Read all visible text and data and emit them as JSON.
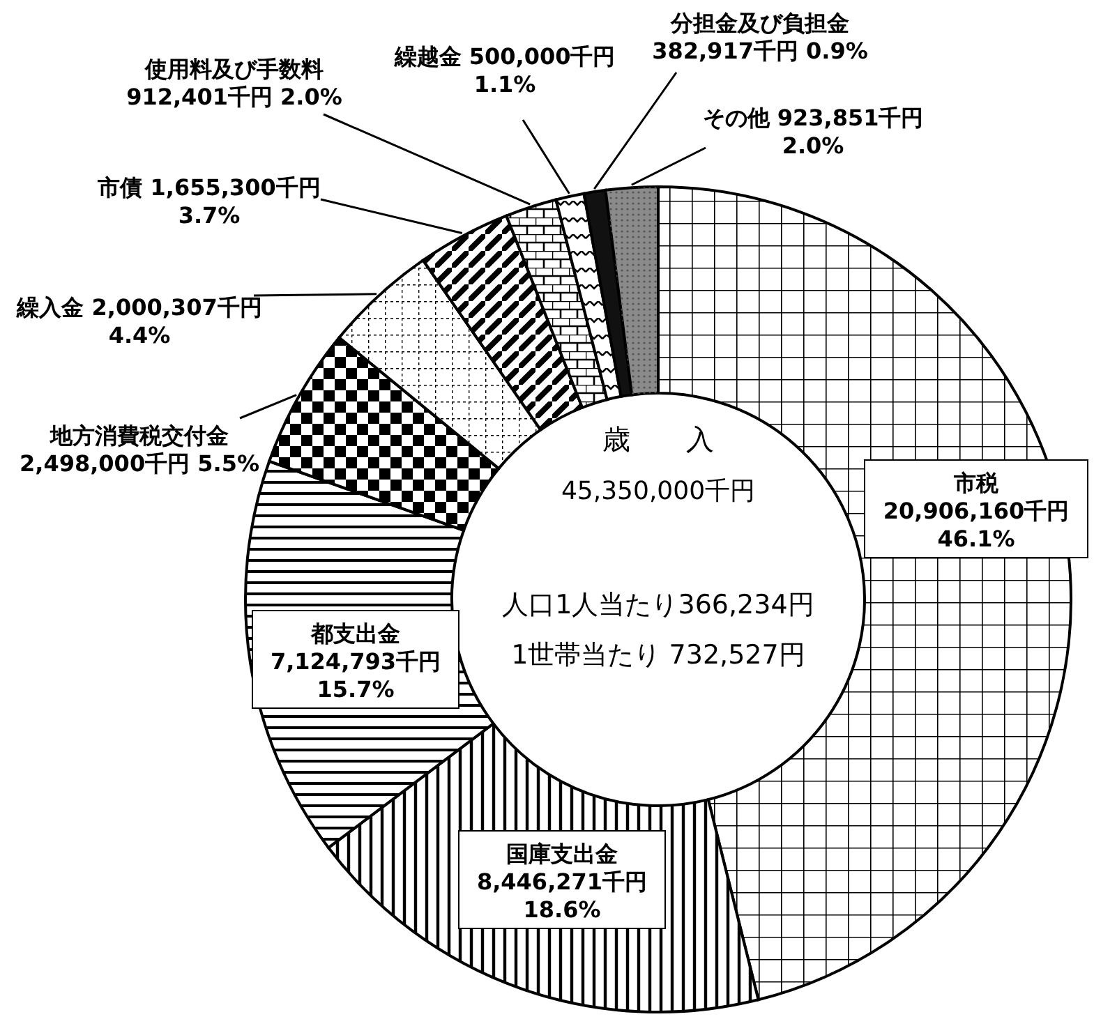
{
  "chart_data": {
    "type": "donut",
    "categories": [
      "市税",
      "国庫支出金",
      "都支出金",
      "地方消費税交付金",
      "繰入金",
      "市債",
      "使用料及び手数料",
      "繰越金",
      "分担金及び負担金",
      "その他"
    ],
    "values": [
      20906160,
      8446271,
      7124793,
      2498000,
      2000307,
      1655300,
      912401,
      500000,
      382917,
      923851
    ],
    "value_labels": [
      "20,906,160千円 46.1%",
      "8,446,271千円 18.6%",
      "7,124,793千円 15.7%",
      "2,498,000千円 5.5%",
      "2,000,307千円 4.4%",
      "1,655,300千円 3.7%",
      "912,401千円 2.0%",
      "500,000千円 1.1%",
      "382,917千円 0.9%",
      "923,851千円 2.0%"
    ],
    "colors": [
      "#ffffff",
      "#ffffff",
      "#ffffff",
      "#ffffff",
      "#ffffff",
      "#ffffff",
      "#ffffff",
      "#ffffff",
      "#111111",
      "#8a8a8a"
    ],
    "annotations": [
      "歳　　入",
      "45,350,000千円",
      "人口1人当たり366,234円",
      "1世帯当たり 732,527円"
    ]
  }
}
